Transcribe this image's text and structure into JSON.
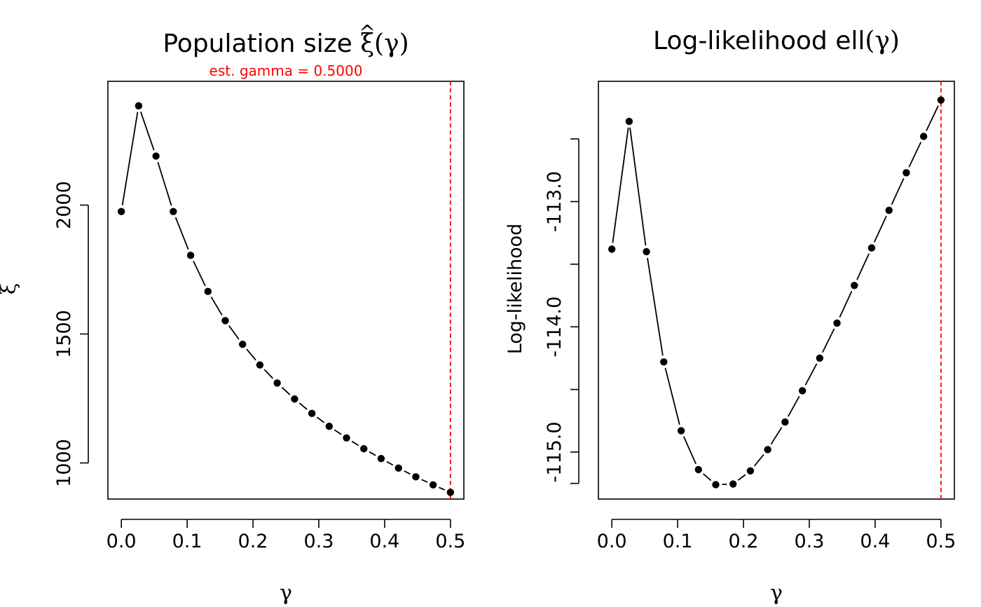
{
  "chart_data": [
    {
      "type": "line",
      "title_prefix": "Population size ",
      "title_symbol": "ξ",
      "title_hat": "^",
      "title_suffix": "(γ)",
      "subtitle": "est. gamma = 0.5000",
      "xlabel": "γ",
      "ylabel": "ξ",
      "xlim": [
        -0.0204,
        0.5204
      ],
      "ylim": [
        860,
        2480
      ],
      "xticks": [
        0.0,
        0.1,
        0.2,
        0.3,
        0.4,
        0.5
      ],
      "xtick_labels": [
        "0.0",
        "0.1",
        "0.2",
        "0.3",
        "0.4",
        "0.5"
      ],
      "yticks": [
        1000,
        1500,
        2000
      ],
      "ytick_labels": [
        "1000",
        "1500",
        "2000"
      ],
      "x": [
        0.0,
        0.0263,
        0.0526,
        0.0789,
        0.1053,
        0.1316,
        0.1579,
        0.1842,
        0.2105,
        0.2368,
        0.2632,
        0.2895,
        0.3158,
        0.3421,
        0.3684,
        0.3947,
        0.4211,
        0.4474,
        0.4737,
        0.5
      ],
      "y": [
        1975,
        2385,
        2190,
        1975,
        1805,
        1665,
        1552,
        1460,
        1380,
        1310,
        1248,
        1192,
        1142,
        1097,
        1055,
        1017,
        980,
        946,
        915,
        886
      ],
      "vline": 0.5,
      "vline_color": "#ff0000"
    },
    {
      "type": "line",
      "title_prefix": "Log-likelihood ell",
      "title_symbol": "",
      "title_hat": "",
      "title_suffix": "(γ)",
      "subtitle": "",
      "xlabel": "γ",
      "ylabel": "Log-likelihood",
      "xlim": [
        -0.0204,
        0.5204
      ],
      "ylim": [
        -115.375,
        -112.04
      ],
      "xticks": [
        0.0,
        0.1,
        0.2,
        0.3,
        0.4,
        0.5
      ],
      "xtick_labels": [
        "0.0",
        "0.1",
        "0.2",
        "0.3",
        "0.4",
        "0.5"
      ],
      "yticks": [
        -115.0,
        -114.0,
        -113.0
      ],
      "ytick_labels": [
        "-115.0",
        "-114.0",
        "-113.0"
      ],
      "yticks_minor": [
        -115.25,
        -114.5,
        -113.5,
        -112.5
      ],
      "x": [
        0.0,
        0.0263,
        0.0526,
        0.0789,
        0.1053,
        0.1316,
        0.1579,
        0.1842,
        0.2105,
        0.2368,
        0.2632,
        0.2895,
        0.3158,
        0.3421,
        0.3684,
        0.3947,
        0.4211,
        0.4474,
        0.4737,
        0.5
      ],
      "y": [
        -113.38,
        -112.36,
        -113.4,
        -114.28,
        -114.83,
        -115.14,
        -115.26,
        -115.255,
        -115.15,
        -114.98,
        -114.76,
        -114.51,
        -114.25,
        -113.97,
        -113.67,
        -113.37,
        -113.07,
        -112.77,
        -112.48,
        -112.19
      ],
      "vline": 0.5,
      "vline_color": "#ff0000"
    }
  ]
}
